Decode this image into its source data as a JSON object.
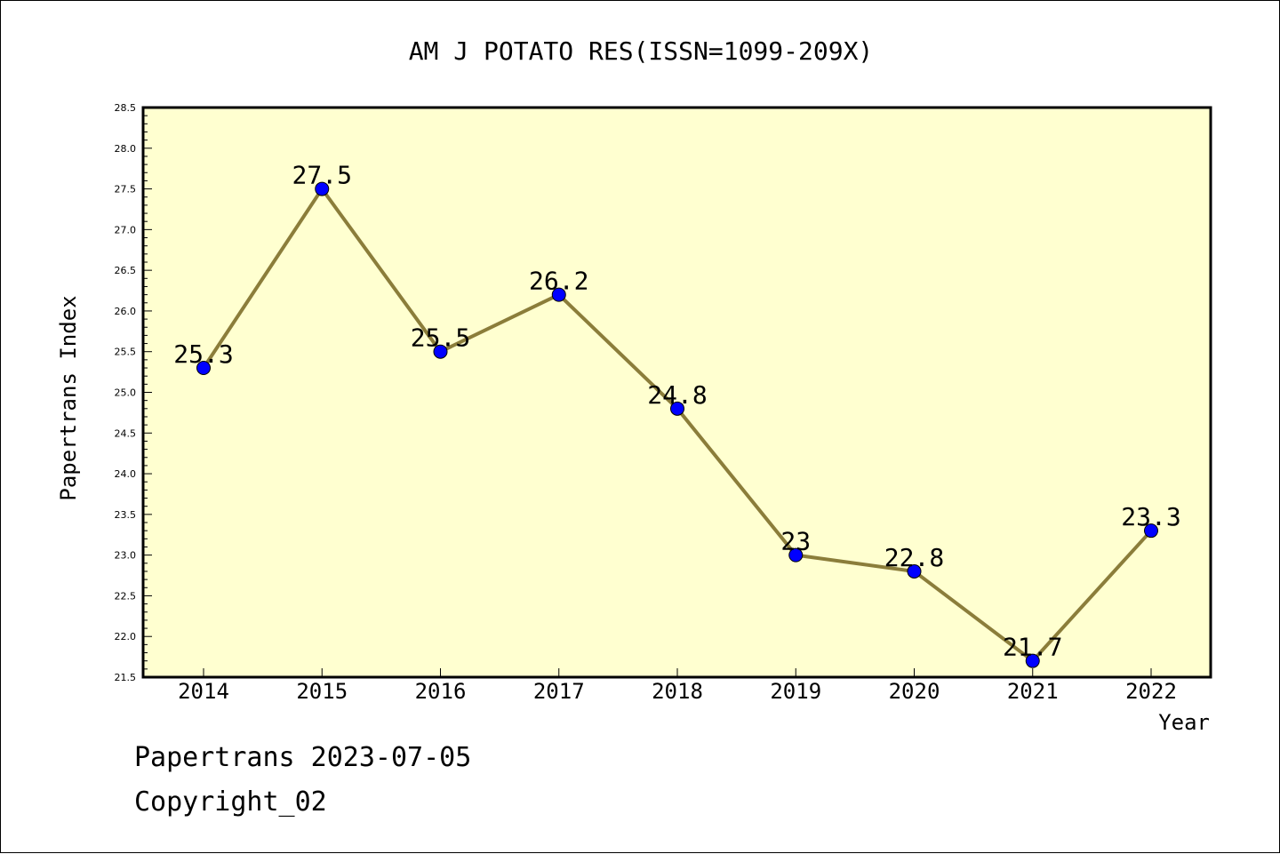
{
  "chart_data": {
    "type": "line",
    "title": "AM J POTATO RES(ISSN=1099-209X)",
    "xlabel": "Year",
    "ylabel": "Papertrans Index",
    "categories": [
      "2014",
      "2015",
      "2016",
      "2017",
      "2018",
      "2019",
      "2020",
      "2021",
      "2022"
    ],
    "series": [
      {
        "values": [
          25.3,
          27.5,
          25.5,
          26.2,
          24.8,
          23.0,
          22.8,
          21.7,
          23.3
        ]
      }
    ],
    "data_labels": [
      "25.3",
      "27.5",
      "25.5",
      "26.2",
      "24.8",
      "23",
      "22.8",
      "21.7",
      "23.3"
    ],
    "ylim": [
      21.5,
      28.5
    ],
    "yticks": [
      "21.5",
      "22.0",
      "22.5",
      "23.0",
      "23.5",
      "24.0",
      "24.5",
      "25.0",
      "25.5",
      "26.0",
      "26.5",
      "27.0",
      "27.5",
      "28.0",
      "28.5"
    ],
    "grid": false,
    "colors": {
      "plot_background": "#ffffd0",
      "line": "#8b7d3a",
      "marker": "#0000ff"
    }
  },
  "footer": {
    "date_text": "Papertrans 2023-07-05",
    "copyright_text": "Copyright_02"
  }
}
